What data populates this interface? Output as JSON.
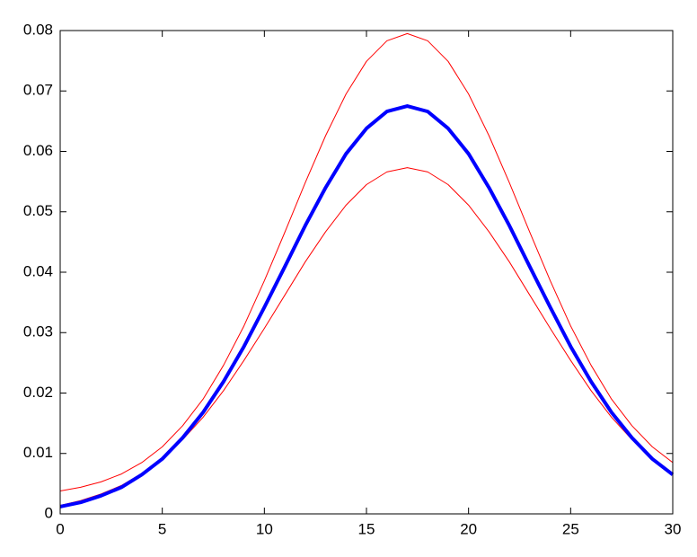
{
  "chart_data": {
    "type": "line",
    "x": [
      0,
      1,
      2,
      3,
      4,
      5,
      6,
      7,
      8,
      9,
      10,
      11,
      12,
      13,
      14,
      15,
      16,
      17,
      18,
      19,
      20,
      21,
      22,
      23,
      24,
      25,
      26,
      27,
      28,
      29,
      30
    ],
    "series": [
      {
        "color": "#ff0000",
        "width": 1,
        "values": [
          0.0038,
          0.0044,
          0.0053,
          0.0066,
          0.0085,
          0.0111,
          0.0146,
          0.019,
          0.0246,
          0.0311,
          0.0386,
          0.0466,
          0.0548,
          0.0626,
          0.0695,
          0.0749,
          0.0783,
          0.0795,
          0.0783,
          0.0749,
          0.0695,
          0.0626,
          0.0548,
          0.0466,
          0.0386,
          0.0311,
          0.0246,
          0.019,
          0.0146,
          0.0111,
          0.0085
        ]
      },
      {
        "color": "#ff0000",
        "width": 1,
        "values": [
          0.0014,
          0.0022,
          0.0033,
          0.0047,
          0.0067,
          0.0092,
          0.0123,
          0.016,
          0.0204,
          0.0254,
          0.0307,
          0.0362,
          0.0417,
          0.0467,
          0.0511,
          0.0545,
          0.0566,
          0.0573,
          0.0566,
          0.0545,
          0.0511,
          0.0467,
          0.0417,
          0.0362,
          0.0307,
          0.0254,
          0.0204,
          0.016,
          0.0123,
          0.0092,
          0.0067
        ]
      },
      {
        "color": "#0000ff",
        "width": 4,
        "values": [
          0.0012,
          0.0019,
          0.003,
          0.0044,
          0.0065,
          0.0091,
          0.0126,
          0.0168,
          0.0219,
          0.0277,
          0.0342,
          0.0409,
          0.0477,
          0.054,
          0.0596,
          0.0638,
          0.0666,
          0.0675,
          0.0666,
          0.0638,
          0.0596,
          0.054,
          0.0477,
          0.0409,
          0.0342,
          0.0277,
          0.0219,
          0.0168,
          0.0126,
          0.0091,
          0.0065
        ]
      }
    ],
    "xlim": [
      0,
      30
    ],
    "xticks": [
      0,
      5,
      10,
      15,
      20,
      25,
      30
    ],
    "ylim": [
      0,
      0.08
    ],
    "yticks": [
      0,
      0.01,
      0.02,
      0.03,
      0.04,
      0.05,
      0.06,
      0.07,
      0.08
    ],
    "grid": false
  }
}
